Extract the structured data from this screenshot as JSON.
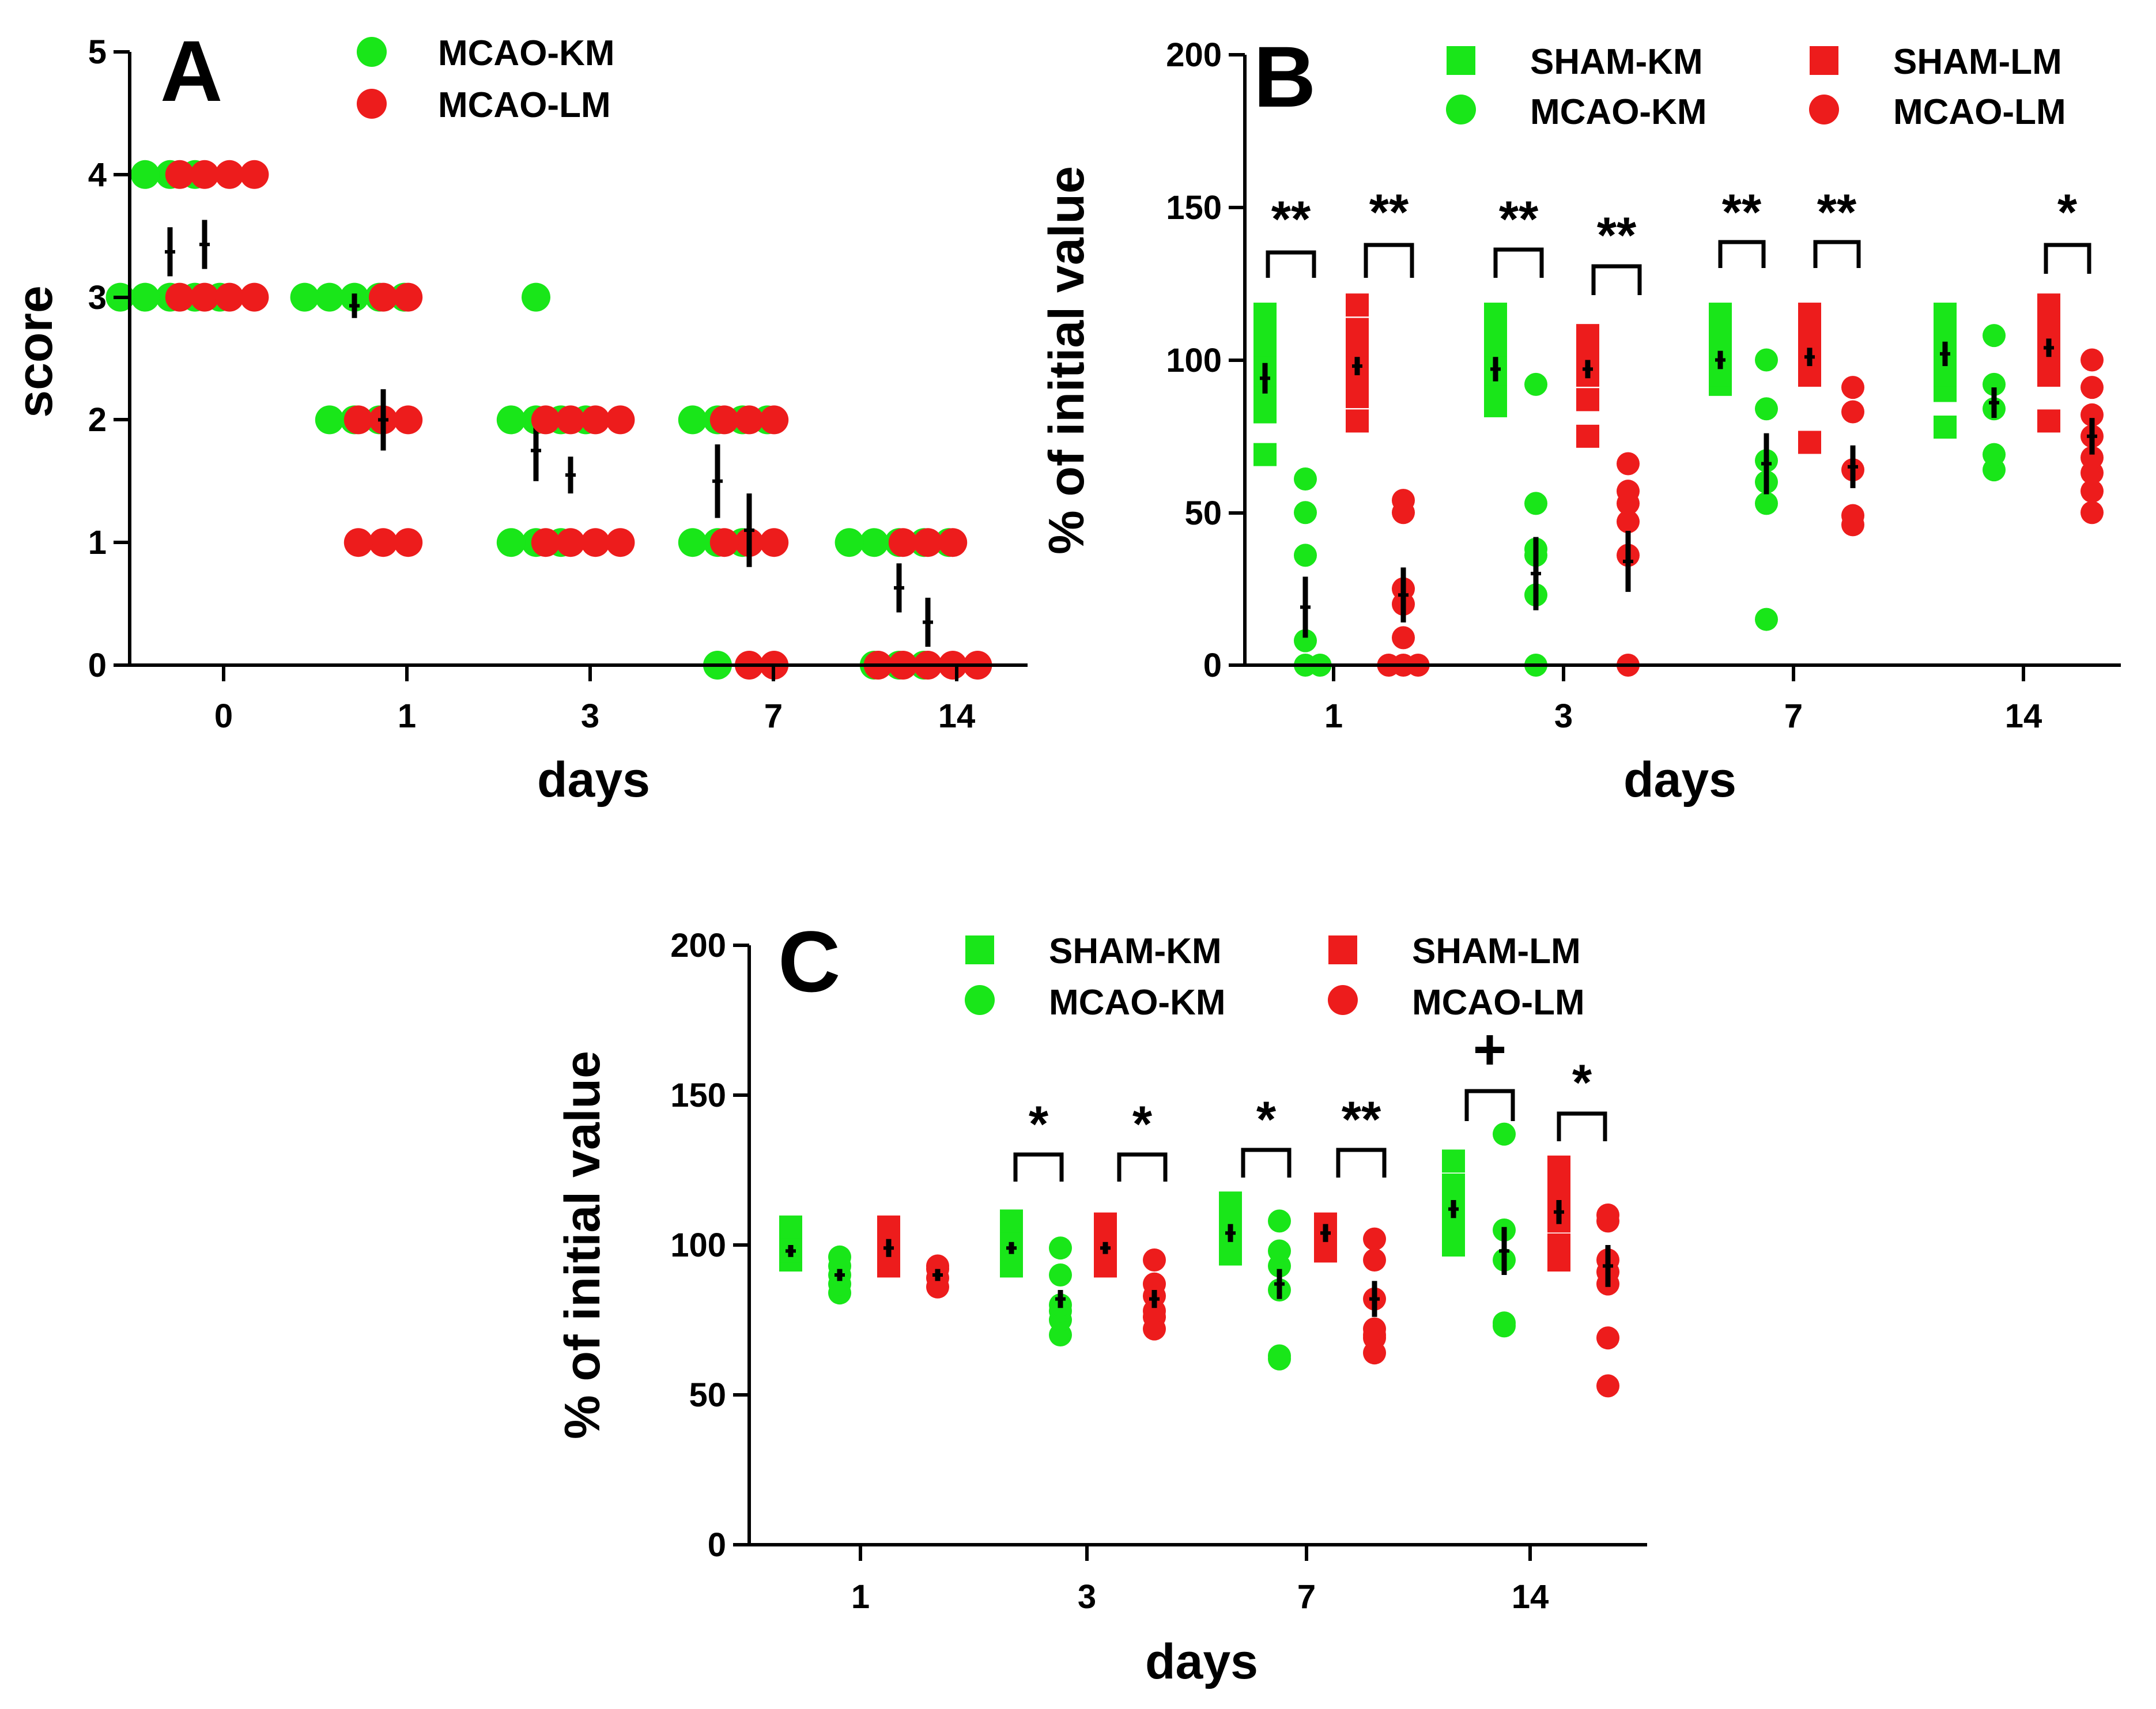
{
  "colors": {
    "km": "#19e619",
    "lm": "#ed1c1c",
    "axis": "#000000"
  },
  "chart_data": [
    {
      "id": "A",
      "type": "scatter",
      "panel_label": "A",
      "xlabel": "days",
      "ylabel": "score",
      "ylim": [
        0,
        5
      ],
      "yticks": [
        0,
        1,
        2,
        3,
        4,
        5
      ],
      "categories": [
        "0",
        "1",
        "3",
        "7",
        "14"
      ],
      "legend_position": "top-center",
      "series": [
        {
          "name": "MCAO-KM",
          "marker": "circle",
          "color": "#19e619",
          "points": [
            [
              4,
              4,
              4,
              3,
              3,
              3,
              3,
              3
            ],
            [
              3,
              3,
              3,
              3,
              3,
              2,
              2,
              2
            ],
            [
              3,
              2,
              2,
              2,
              2,
              1,
              1,
              1
            ],
            [
              2,
              2,
              2,
              2,
              1,
              1,
              1,
              0
            ],
            [
              1,
              1,
              1,
              1,
              1,
              0,
              0,
              0
            ]
          ],
          "mean": [
            3.37,
            2.93,
            1.75,
            1.5,
            0.63
          ],
          "sem": [
            0.2,
            0.1,
            0.25,
            0.3,
            0.2
          ]
        },
        {
          "name": "MCAO-LM",
          "marker": "circle",
          "color": "#ed1c1c",
          "points": [
            [
              4,
              4,
              4,
              4,
              3,
              3,
              3,
              3
            ],
            [
              3,
              3,
              2,
              2,
              2,
              1,
              1,
              1
            ],
            [
              2,
              2,
              2,
              2,
              1,
              1,
              1,
              1
            ],
            [
              2,
              2,
              2,
              1,
              1,
              1,
              0,
              0
            ],
            [
              1,
              1,
              1,
              0,
              0,
              0,
              0,
              0
            ]
          ],
          "mean": [
            3.43,
            2.0,
            1.55,
            1.1,
            0.35
          ],
          "sem": [
            0.2,
            0.25,
            0.15,
            0.3,
            0.2
          ]
        }
      ]
    },
    {
      "id": "B",
      "type": "scatter",
      "panel_label": "B",
      "xlabel": "days",
      "ylabel": "% of initial value",
      "ylim": [
        0,
        200
      ],
      "yticks": [
        0,
        50,
        100,
        150,
        200
      ],
      "categories": [
        "1",
        "3",
        "7",
        "14"
      ],
      "legend_position": "top-right",
      "series": [
        {
          "name": "SHAM-KM",
          "marker": "square",
          "color": "#19e619",
          "points": [
            [
              69,
              83,
              90,
              95,
              100,
              105,
              110,
              115
            ],
            [
              85,
              90,
              95,
              100,
              105,
              110,
              115,
              88
            ],
            [
              92,
              95,
              98,
              100,
              102,
              105,
              110,
              115
            ],
            [
              78,
              90,
              95,
              100,
              102,
              105,
              110,
              115
            ]
          ],
          "mean": [
            94,
            97,
            100,
            102
          ],
          "sem": [
            5,
            4,
            3,
            4
          ]
        },
        {
          "name": "MCAO-KM",
          "marker": "circle",
          "color": "#19e619",
          "points": [
            [
              0,
              0,
              8,
              36,
              50,
              61
            ],
            [
              0,
              23,
              36,
              38,
              53,
              92
            ],
            [
              15,
              53,
              60,
              67,
              84,
              100
            ],
            [
              64,
              69,
              84,
              92,
              108
            ]
          ],
          "mean": [
            19,
            30,
            66,
            86
          ],
          "sem": [
            10,
            12,
            10,
            5
          ]
        },
        {
          "name": "SHAM-LM",
          "marker": "square",
          "color": "#ed1c1c",
          "points": [
            [
              80,
              88,
              92,
              95,
              100,
              105,
              110,
              118
            ],
            [
              75,
              87,
              95,
              100,
              105,
              108,
              97,
              99
            ],
            [
              73,
              95,
              98,
              100,
              103,
              105,
              110,
              115
            ],
            [
              80,
              95,
              100,
              105,
              110,
              112,
              115,
              118
            ]
          ],
          "mean": [
            98,
            97,
            101,
            104
          ],
          "sem": [
            3,
            3,
            3,
            3
          ]
        },
        {
          "name": "MCAO-LM",
          "marker": "circle",
          "color": "#ed1c1c",
          "points": [
            [
              0,
              0,
              0,
              9,
              20,
              25,
              50,
              54
            ],
            [
              0,
              36,
              47,
              53,
              57,
              66
            ],
            [
              46,
              49,
              64,
              83,
              91
            ],
            [
              50,
              57,
              63,
              68,
              75,
              82,
              91,
              100
            ]
          ],
          "mean": [
            23,
            34,
            65,
            75
          ],
          "sem": [
            9,
            10,
            7,
            6
          ]
        }
      ],
      "annotations": [
        "**",
        "**",
        "**",
        "**",
        "**",
        "**",
        "*"
      ]
    },
    {
      "id": "C",
      "type": "scatter",
      "panel_label": "C",
      "xlabel": "days",
      "ylabel": "% of initial value",
      "ylim": [
        0,
        200
      ],
      "yticks": [
        0,
        50,
        100,
        150,
        200
      ],
      "categories": [
        "1",
        "3",
        "7",
        "14"
      ],
      "legend_position": "top-center",
      "series": [
        {
          "name": "SHAM-KM",
          "marker": "square",
          "color": "#19e619",
          "points": [
            [
              95,
              97,
              98,
              100,
              106
            ],
            [
              93,
              95,
              97,
              100,
              105,
              108
            ],
            [
              97,
              100,
              104,
              110,
              114
            ],
            [
              100,
              105,
              110,
              115,
              120,
              128
            ]
          ],
          "mean": [
            98,
            99,
            104,
            112
          ],
          "sem": [
            2,
            2,
            3,
            3
          ]
        },
        {
          "name": "MCAO-KM",
          "marker": "circle",
          "color": "#19e619",
          "points": [
            [
              84,
              87,
              90,
              93,
              96
            ],
            [
              70,
              75,
              78,
              80,
              90,
              99
            ],
            [
              62,
              63,
              85,
              93,
              98,
              108
            ],
            [
              73,
              74,
              95,
              105,
              137
            ]
          ],
          "mean": [
            90,
            82,
            87,
            98
          ],
          "sem": [
            2,
            3,
            5,
            8
          ]
        },
        {
          "name": "SHAM-LM",
          "marker": "square",
          "color": "#ed1c1c",
          "points": [
            [
              93,
              95,
              100,
              103,
              106
            ],
            [
              93,
              97,
              100,
              103,
              107
            ],
            [
              98,
              101,
              104,
              107
            ],
            [
              95,
              100,
              108,
              112,
              117,
              120,
              126
            ]
          ],
          "mean": [
            99,
            99,
            104,
            111
          ],
          "sem": [
            3,
            2,
            3,
            4
          ]
        },
        {
          "name": "MCAO-LM",
          "marker": "circle",
          "color": "#ed1c1c",
          "points": [
            [
              86,
              89,
              92,
              93
            ],
            [
              72,
              76,
              78,
              83,
              87,
              95
            ],
            [
              64,
              69,
              70,
              72,
              82,
              95,
              102
            ],
            [
              53,
              69,
              87,
              91,
              95,
              108,
              110
            ]
          ],
          "mean": [
            90,
            82,
            82,
            93
          ],
          "sem": [
            2,
            3,
            6,
            7
          ]
        }
      ],
      "annotations": [
        "*",
        "*",
        "*",
        "**",
        "+",
        "*"
      ]
    }
  ]
}
